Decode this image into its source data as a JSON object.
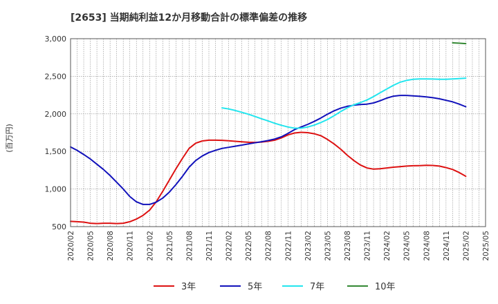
{
  "chart_data": {
    "type": "line",
    "title": "[2653]  当期純利益12か月移動合計の標準偏差の推移",
    "ylabel": "(百万円)",
    "xlabel": "",
    "ylim": [
      500,
      3000
    ],
    "yticks": [
      500,
      1000,
      1500,
      2000,
      2500,
      3000
    ],
    "ytick_labels": [
      "500",
      "1,000",
      "1,500",
      "2,000",
      "2,500",
      "3,000"
    ],
    "x_start": "2020/02",
    "x_end": "2025/05",
    "xtick_labels": [
      "2020/02",
      "2020/05",
      "2020/08",
      "2020/11",
      "2021/02",
      "2021/05",
      "2021/08",
      "2021/11",
      "2022/02",
      "2022/05",
      "2022/08",
      "2022/11",
      "2023/02",
      "2023/05",
      "2023/08",
      "2023/11",
      "2024/02",
      "2024/05",
      "2024/08",
      "2024/11",
      "2025/02",
      "2025/05"
    ],
    "grid": true,
    "legend": "bottom",
    "series": [
      {
        "name": "3年",
        "color": "#dd1111",
        "points": [
          [
            "2020/02",
            570
          ],
          [
            "2020/03",
            565
          ],
          [
            "2020/04",
            560
          ],
          [
            "2020/05",
            545
          ],
          [
            "2020/06",
            540
          ],
          [
            "2020/07",
            545
          ],
          [
            "2020/08",
            545
          ],
          [
            "2020/09",
            540
          ],
          [
            "2020/10",
            545
          ],
          [
            "2020/11",
            565
          ],
          [
            "2020/12",
            600
          ],
          [
            "2021/01",
            650
          ],
          [
            "2021/02",
            720
          ],
          [
            "2021/03",
            830
          ],
          [
            "2021/04",
            970
          ],
          [
            "2021/05",
            1120
          ],
          [
            "2021/06",
            1270
          ],
          [
            "2021/07",
            1410
          ],
          [
            "2021/08",
            1540
          ],
          [
            "2021/09",
            1610
          ],
          [
            "2021/10",
            1640
          ],
          [
            "2021/11",
            1650
          ],
          [
            "2021/12",
            1650
          ],
          [
            "2022/01",
            1648
          ],
          [
            "2022/02",
            1642
          ],
          [
            "2022/03",
            1635
          ],
          [
            "2022/04",
            1628
          ],
          [
            "2022/05",
            1622
          ],
          [
            "2022/06",
            1620
          ],
          [
            "2022/07",
            1625
          ],
          [
            "2022/08",
            1635
          ],
          [
            "2022/09",
            1650
          ],
          [
            "2022/10",
            1680
          ],
          [
            "2022/11",
            1720
          ],
          [
            "2022/12",
            1745
          ],
          [
            "2023/01",
            1755
          ],
          [
            "2023/02",
            1750
          ],
          [
            "2023/03",
            1735
          ],
          [
            "2023/04",
            1710
          ],
          [
            "2023/05",
            1660
          ],
          [
            "2023/06",
            1600
          ],
          [
            "2023/07",
            1530
          ],
          [
            "2023/08",
            1450
          ],
          [
            "2023/09",
            1380
          ],
          [
            "2023/10",
            1320
          ],
          [
            "2023/11",
            1280
          ],
          [
            "2023/12",
            1265
          ],
          [
            "2024/01",
            1270
          ],
          [
            "2024/02",
            1280
          ],
          [
            "2024/03",
            1290
          ],
          [
            "2024/04",
            1298
          ],
          [
            "2024/05",
            1305
          ],
          [
            "2024/06",
            1310
          ],
          [
            "2024/07",
            1312
          ],
          [
            "2024/08",
            1315
          ],
          [
            "2024/09",
            1313
          ],
          [
            "2024/10",
            1305
          ],
          [
            "2024/11",
            1285
          ],
          [
            "2024/12",
            1260
          ],
          [
            "2025/01",
            1220
          ],
          [
            "2025/02",
            1170
          ]
        ]
      },
      {
        "name": "5年",
        "color": "#1111bb",
        "points": [
          [
            "2020/02",
            1560
          ],
          [
            "2020/03",
            1515
          ],
          [
            "2020/04",
            1460
          ],
          [
            "2020/05",
            1400
          ],
          [
            "2020/06",
            1330
          ],
          [
            "2020/07",
            1260
          ],
          [
            "2020/08",
            1180
          ],
          [
            "2020/09",
            1090
          ],
          [
            "2020/10",
            1000
          ],
          [
            "2020/11",
            900
          ],
          [
            "2020/12",
            830
          ],
          [
            "2021/01",
            795
          ],
          [
            "2021/02",
            795
          ],
          [
            "2021/03",
            825
          ],
          [
            "2021/04",
            880
          ],
          [
            "2021/05",
            960
          ],
          [
            "2021/06",
            1060
          ],
          [
            "2021/07",
            1170
          ],
          [
            "2021/08",
            1290
          ],
          [
            "2021/09",
            1380
          ],
          [
            "2021/10",
            1440
          ],
          [
            "2021/11",
            1485
          ],
          [
            "2021/12",
            1515
          ],
          [
            "2022/01",
            1540
          ],
          [
            "2022/02",
            1555
          ],
          [
            "2022/03",
            1570
          ],
          [
            "2022/04",
            1585
          ],
          [
            "2022/05",
            1600
          ],
          [
            "2022/06",
            1615
          ],
          [
            "2022/07",
            1630
          ],
          [
            "2022/08",
            1645
          ],
          [
            "2022/09",
            1665
          ],
          [
            "2022/10",
            1695
          ],
          [
            "2022/11",
            1740
          ],
          [
            "2022/12",
            1790
          ],
          [
            "2023/01",
            1825
          ],
          [
            "2023/02",
            1860
          ],
          [
            "2023/03",
            1900
          ],
          [
            "2023/04",
            1945
          ],
          [
            "2023/05",
            1995
          ],
          [
            "2023/06",
            2040
          ],
          [
            "2023/07",
            2075
          ],
          [
            "2023/08",
            2100
          ],
          [
            "2023/09",
            2115
          ],
          [
            "2023/10",
            2125
          ],
          [
            "2023/11",
            2130
          ],
          [
            "2023/12",
            2145
          ],
          [
            "2024/01",
            2175
          ],
          [
            "2024/02",
            2210
          ],
          [
            "2024/03",
            2235
          ],
          [
            "2024/04",
            2245
          ],
          [
            "2024/05",
            2245
          ],
          [
            "2024/06",
            2240
          ],
          [
            "2024/07",
            2233
          ],
          [
            "2024/08",
            2225
          ],
          [
            "2024/09",
            2215
          ],
          [
            "2024/10",
            2200
          ],
          [
            "2024/11",
            2180
          ],
          [
            "2024/12",
            2160
          ],
          [
            "2025/01",
            2130
          ],
          [
            "2025/02",
            2095
          ]
        ]
      },
      {
        "name": "7年",
        "color": "#22e5ee",
        "points": [
          [
            "2022/01",
            2080
          ],
          [
            "2022/02",
            2065
          ],
          [
            "2022/03",
            2045
          ],
          [
            "2022/04",
            2020
          ],
          [
            "2022/05",
            1995
          ],
          [
            "2022/06",
            1965
          ],
          [
            "2022/07",
            1935
          ],
          [
            "2022/08",
            1905
          ],
          [
            "2022/09",
            1875
          ],
          [
            "2022/10",
            1848
          ],
          [
            "2022/11",
            1825
          ],
          [
            "2022/12",
            1810
          ],
          [
            "2023/01",
            1810
          ],
          [
            "2023/02",
            1825
          ],
          [
            "2023/03",
            1850
          ],
          [
            "2023/04",
            1885
          ],
          [
            "2023/05",
            1925
          ],
          [
            "2023/06",
            1975
          ],
          [
            "2023/07",
            2030
          ],
          [
            "2023/08",
            2080
          ],
          [
            "2023/09",
            2120
          ],
          [
            "2023/10",
            2150
          ],
          [
            "2023/11",
            2185
          ],
          [
            "2023/12",
            2230
          ],
          [
            "2024/01",
            2280
          ],
          [
            "2024/02",
            2330
          ],
          [
            "2024/03",
            2380
          ],
          [
            "2024/04",
            2420
          ],
          [
            "2024/05",
            2445
          ],
          [
            "2024/06",
            2460
          ],
          [
            "2024/07",
            2465
          ],
          [
            "2024/08",
            2465
          ],
          [
            "2024/09",
            2463
          ],
          [
            "2024/10",
            2460
          ],
          [
            "2024/11",
            2460
          ],
          [
            "2024/12",
            2465
          ],
          [
            "2025/01",
            2470
          ],
          [
            "2025/02",
            2475
          ]
        ]
      },
      {
        "name": "10年",
        "color": "#338833",
        "points": [
          [
            "2024/12",
            2945
          ],
          [
            "2025/01",
            2940
          ],
          [
            "2025/02",
            2935
          ]
        ]
      }
    ]
  }
}
